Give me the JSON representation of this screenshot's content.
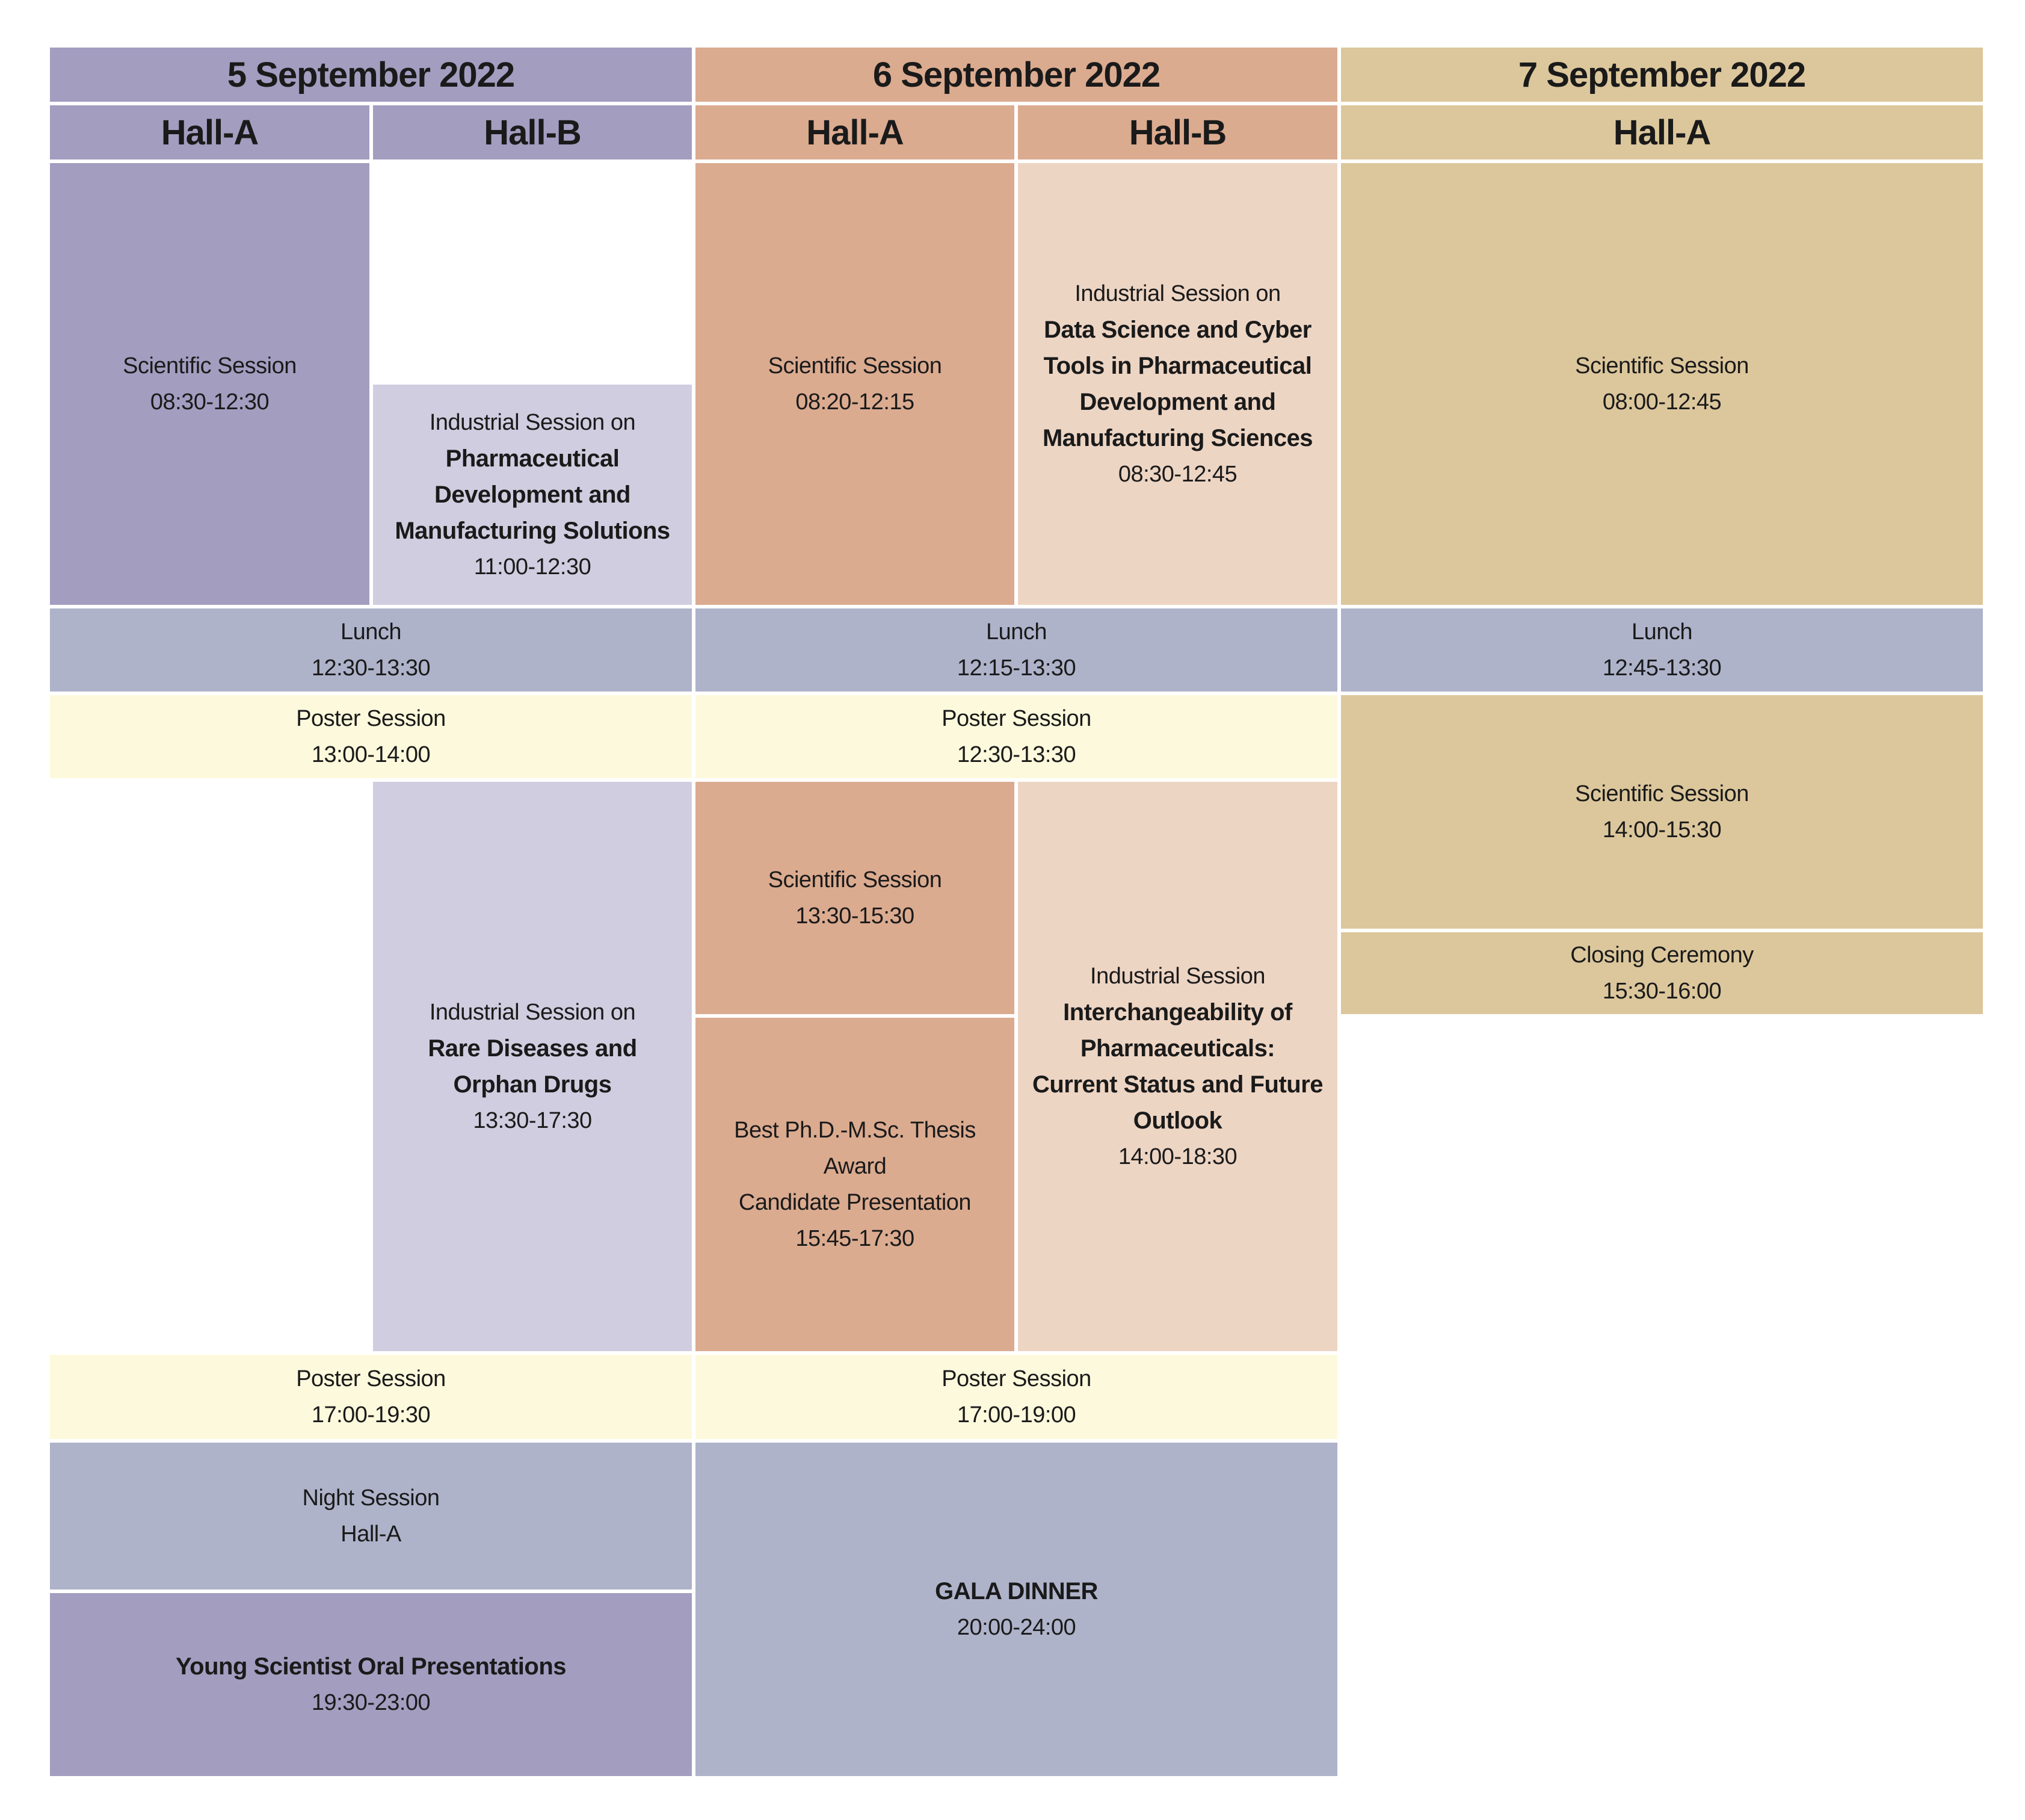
{
  "days": [
    {
      "label": "5 September 2022",
      "halls": [
        "Hall-A",
        "Hall-B"
      ]
    },
    {
      "label": "6 September 2022",
      "halls": [
        "Hall-A",
        "Hall-B"
      ]
    },
    {
      "label": "7 September 2022",
      "halls": [
        "Hall-A"
      ]
    }
  ],
  "colors": {
    "day1": "#a39dc0",
    "day1_light": "#d1cde0",
    "day2": "#dbab90",
    "day2_light": "#edd5c4",
    "day3": "#dcc79c",
    "break": "#aeb3ca",
    "poster": "#fdf9dc"
  },
  "sessions": [
    {
      "id": "s-1",
      "color": "c-purple",
      "lines": [
        {
          "text": "Scientific Session"
        },
        {
          "text": "08:30-12:30"
        }
      ]
    },
    {
      "id": "s-2",
      "color": "c-lpurple",
      "lines": [
        {
          "text": "Industrial Session on"
        },
        {
          "text": "Pharmaceutical",
          "bold": true
        },
        {
          "text": "Development and",
          "bold": true
        },
        {
          "text": "Manufacturing Solutions",
          "bold": true
        },
        {
          "text": "11:00-12:30"
        }
      ]
    },
    {
      "id": "s-3",
      "color": "c-orange",
      "lines": [
        {
          "text": "Scientific Session"
        },
        {
          "text": "08:20-12:15"
        }
      ]
    },
    {
      "id": "s-4",
      "color": "c-lorange",
      "lines": [
        {
          "text": "Industrial Session on"
        },
        {
          "text": "Data Science and Cyber",
          "bold": true
        },
        {
          "text": "Tools in Pharmaceutical",
          "bold": true
        },
        {
          "text": "Development and",
          "bold": true
        },
        {
          "text": "Manufacturing Sciences",
          "bold": true
        },
        {
          "text": "08:30-12:45"
        }
      ]
    },
    {
      "id": "s-5",
      "color": "c-tan",
      "lines": [
        {
          "text": "Scientific Session"
        },
        {
          "text": "08:00-12:45"
        }
      ]
    },
    {
      "id": "s-6",
      "color": "c-gray",
      "lines": [
        {
          "text": "Lunch"
        },
        {
          "text": "12:30-13:30"
        }
      ]
    },
    {
      "id": "s-7",
      "color": "c-gray",
      "lines": [
        {
          "text": "Lunch"
        },
        {
          "text": "12:15-13:30"
        }
      ]
    },
    {
      "id": "s-8",
      "color": "c-gray",
      "lines": [
        {
          "text": "Lunch"
        },
        {
          "text": "12:45-13:30"
        }
      ]
    },
    {
      "id": "s-9",
      "color": "c-yellow",
      "lines": [
        {
          "text": "Poster Session"
        },
        {
          "text": "13:00-14:00"
        }
      ]
    },
    {
      "id": "s-10",
      "color": "c-yellow",
      "lines": [
        {
          "text": "Poster Session"
        },
        {
          "text": "12:30-13:30"
        }
      ]
    },
    {
      "id": "s-11",
      "color": "c-tan",
      "lines": [
        {
          "text": "Scientific Session"
        },
        {
          "text": "14:00-15:30"
        }
      ]
    },
    {
      "id": "s-12",
      "color": "c-tan",
      "lines": [
        {
          "text": "Closing Ceremony"
        },
        {
          "text": "15:30-16:00"
        }
      ]
    },
    {
      "id": "s-13",
      "color": "c-lpurple",
      "lines": [
        {
          "text": "Industrial Session on"
        },
        {
          "text": "Rare Diseases and",
          "bold": true
        },
        {
          "text": "Orphan Drugs",
          "bold": true
        },
        {
          "text": "13:30-17:30"
        }
      ]
    },
    {
      "id": "s-14",
      "color": "c-orange",
      "lines": [
        {
          "text": "Scientific Session"
        },
        {
          "text": "13:30-15:30"
        }
      ]
    },
    {
      "id": "s-15",
      "color": "c-orange",
      "lines": [
        {
          "text": "Best Ph.D.-M.Sc. Thesis Award"
        },
        {
          "text": "Candidate Presentation"
        },
        {
          "text": "15:45-17:30"
        }
      ]
    },
    {
      "id": "s-16",
      "color": "c-lorange",
      "lines": [
        {
          "text": "Industrial Session"
        },
        {
          "text": "Interchangeability of",
          "bold": true
        },
        {
          "text": "Pharmaceuticals:",
          "bold": true
        },
        {
          "text": "Current Status and Future",
          "bold": true
        },
        {
          "text": "Outlook",
          "bold": true
        },
        {
          "text": "14:00-18:30"
        }
      ]
    },
    {
      "id": "s-17",
      "color": "c-yellow",
      "lines": [
        {
          "text": "Poster Session"
        },
        {
          "text": "17:00-19:30"
        }
      ]
    },
    {
      "id": "s-18",
      "color": "c-yellow",
      "lines": [
        {
          "text": "Poster Session"
        },
        {
          "text": "17:00-19:00"
        }
      ]
    },
    {
      "id": "s-19",
      "color": "c-gray",
      "lines": [
        {
          "text": "Night Session"
        },
        {
          "text": "Hall-A"
        }
      ]
    },
    {
      "id": "s-20",
      "color": "c-purple",
      "lines": [
        {
          "text": "Young Scientist Oral Presentations",
          "bold": true
        },
        {
          "text": "19:30-23:00"
        }
      ]
    },
    {
      "id": "s-21",
      "color": "c-gray",
      "lines": [
        {
          "text": "GALA DINNER",
          "bold": true
        },
        {
          "text": "20:00-24:00"
        }
      ]
    }
  ]
}
